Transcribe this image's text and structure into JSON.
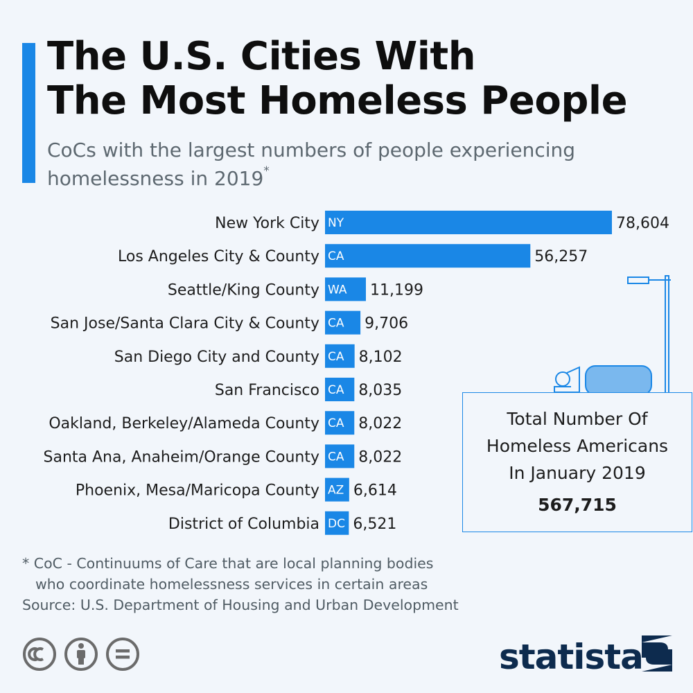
{
  "title_lines": [
    "The U.S. Cities With",
    "The Most Homeless People"
  ],
  "subtitle_lines": [
    "CoCs with the largest numbers of people experiencing",
    "homelessness in 2019"
  ],
  "subtitle_mark": "*",
  "chart_data": {
    "type": "bar",
    "orientation": "horizontal",
    "categories": [
      "New York City",
      "Los Angeles City & County",
      "Seattle/King County",
      "San Jose/Santa Clara City & County",
      "San Diego City and County",
      "San Francisco",
      "Oakland, Berkeley/Alameda County",
      "Santa Ana, Anaheim/Orange County",
      "Phoenix, Mesa/Maricopa County",
      "District of Columbia"
    ],
    "state_labels": [
      "NY",
      "CA",
      "WA",
      "CA",
      "CA",
      "CA",
      "CA",
      "CA",
      "AZ",
      "DC"
    ],
    "values": [
      78604,
      56257,
      11199,
      9706,
      8102,
      8035,
      8022,
      8022,
      6614,
      6521
    ],
    "value_labels": [
      "78,604",
      "56,257",
      "11,199",
      "9,706",
      "8,102",
      "8,035",
      "8,022",
      "8,022",
      "6,614",
      "6,521"
    ],
    "xlim": [
      0,
      78604
    ],
    "bar_color": "#1a87e6",
    "grid": false
  },
  "total_box": {
    "heading_lines": [
      "Total Number Of",
      "Homeless Americans",
      "In January 2019"
    ],
    "value": "567,715"
  },
  "footnote_lines": [
    "* CoC - Continuums of Care that are local planning bodies",
    "who coordinate homelessness services in certain areas",
    "Source: U.S. Department of Housing and Urban Development"
  ],
  "license_icons": [
    "cc-icon",
    "attribution-icon",
    "no-derivatives-icon"
  ],
  "brand": "statista",
  "colors": {
    "accent": "#1a87e6",
    "background": "#f2f6fb",
    "brand_dark": "#0d2b4e"
  }
}
